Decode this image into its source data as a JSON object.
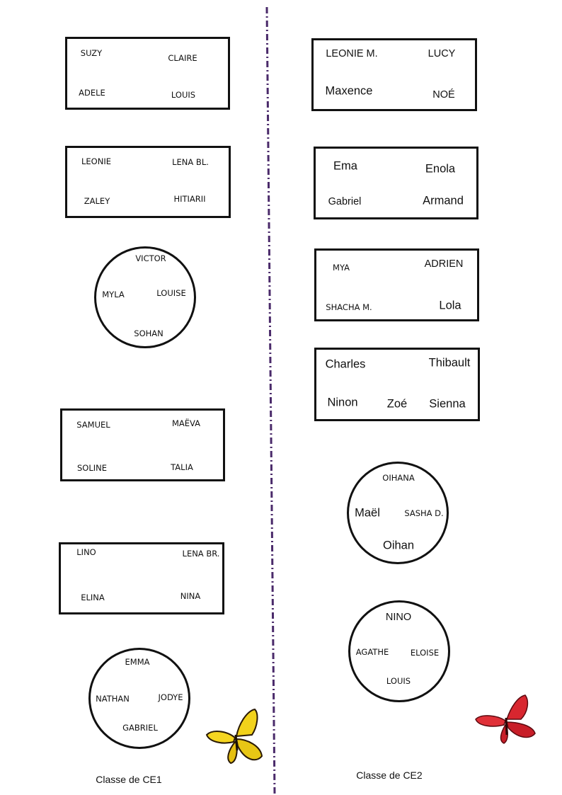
{
  "ce1": {
    "caption": "Classe de CE1",
    "groups": [
      {
        "shape": "rectangle",
        "students": [
          "SUZY",
          "CLAIRE",
          "ADELE",
          "LOUIS"
        ]
      },
      {
        "shape": "rectangle",
        "students": [
          "LEONIE",
          "LENA BL.",
          "ZALEY",
          "HITIARII"
        ]
      },
      {
        "shape": "circle",
        "students": [
          "VICTOR",
          "MYLA",
          "LOUISE",
          "SOHAN"
        ]
      },
      {
        "shape": "rectangle",
        "students": [
          "SAMUEL",
          "MAËVA",
          "SOLINE",
          "TALIA"
        ]
      },
      {
        "shape": "rectangle",
        "students": [
          "LINO",
          "LENA BR.",
          "ELINA",
          "NINA"
        ]
      },
      {
        "shape": "circle",
        "students": [
          "EMMA",
          "NATHAN",
          "JODYE",
          "GABRIEL"
        ]
      }
    ]
  },
  "ce2": {
    "caption": "Classe de CE2",
    "groups": [
      {
        "shape": "rectangle",
        "students": [
          "LEONIE M.",
          "LUCY",
          "Maxence",
          "NOÉ"
        ]
      },
      {
        "shape": "rectangle",
        "students": [
          "Ema",
          "Enola",
          "Gabriel",
          "Armand"
        ]
      },
      {
        "shape": "rectangle",
        "students": [
          "MYA",
          "ADRIEN",
          "SHACHA M.",
          "Lola"
        ]
      },
      {
        "shape": "rectangle",
        "students": [
          "Charles",
          "Thibault",
          "Ninon",
          "Zoé",
          "Sienna"
        ]
      },
      {
        "shape": "circle",
        "students": [
          "OIHANA",
          "Maël",
          "SASHA D.",
          "Oihan"
        ]
      },
      {
        "shape": "circle",
        "students": [
          "NINO",
          "AGATHE",
          "ELOISE",
          "LOUIS"
        ]
      }
    ]
  },
  "decorations": {
    "divider_color": "#4a2a6a",
    "butterfly_left": "yellow-butterfly",
    "butterfly_right": "red-butterfly"
  }
}
